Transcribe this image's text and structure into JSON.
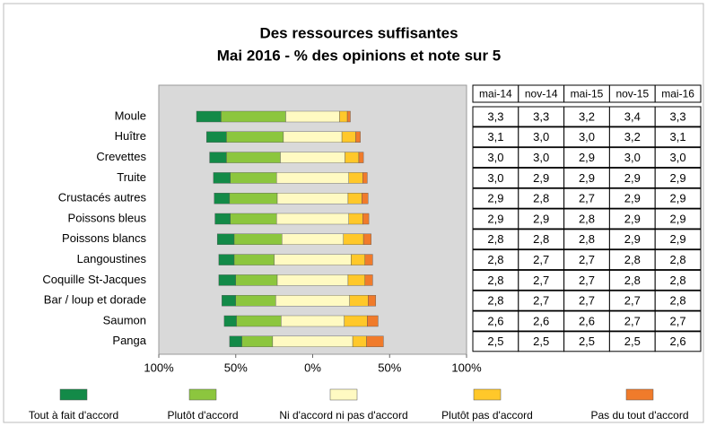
{
  "chart_data": {
    "type": "diverging_bar",
    "title": "Des ressources suffisantes",
    "subtitle": "Mai 2016 - % des opinions et note sur 5",
    "categories": [
      "Moule",
      "Huître",
      "Crevettes",
      "Truite",
      "Crustacés autres",
      "Poissons bleus",
      "Poissons blancs",
      "Langoustines",
      "Coquille St-Jacques",
      "Bar / loup et dorade",
      "Saumon",
      "Panga"
    ],
    "series": [
      {
        "name": "Tout à fait d'accord",
        "color": "#138a48",
        "values": [
          16,
          13,
          11,
          11,
          10,
          10,
          11,
          10,
          11,
          9,
          8,
          8
        ]
      },
      {
        "name": "Plutôt d'accord",
        "color": "#8cc63e",
        "values": [
          42,
          37,
          35,
          30,
          31,
          30,
          31,
          26,
          27,
          26,
          29,
          20
        ]
      },
      {
        "name": "Ni d'accord ni pas d'accord",
        "color": "#fffac2",
        "values": [
          35,
          38,
          42,
          47,
          46,
          47,
          40,
          50,
          46,
          48,
          41,
          52
        ]
      },
      {
        "name": "Plutôt pas d'accord",
        "color": "#ffc82a",
        "values": [
          5,
          9,
          9,
          9,
          9,
          9,
          13,
          9,
          11,
          12,
          15,
          9
        ]
      },
      {
        "name": "Pas du tout d'accord",
        "color": "#f07b2b",
        "values": [
          2,
          3,
          3,
          3,
          4,
          4,
          5,
          5,
          5,
          5,
          7,
          11
        ]
      }
    ],
    "xlim": [
      -100,
      100
    ],
    "xticks": [
      {
        "value": -100,
        "label": "100%"
      },
      {
        "value": -50,
        "label": "50%"
      },
      {
        "value": 0,
        "label": "0%"
      },
      {
        "value": 50,
        "label": "50%"
      },
      {
        "value": 100,
        "label": "100%"
      }
    ]
  },
  "table": {
    "columns": [
      "mai-14",
      "nov-14",
      "mai-15",
      "nov-15",
      "mai-16"
    ],
    "rows": [
      [
        "3,3",
        "3,3",
        {
          "text": "3,2",
          "color": "#e0281e"
        },
        {
          "text": "3,4",
          "color": "#1f9a3a"
        },
        "3,3"
      ],
      [
        "3,1",
        {
          "text": "3,0",
          "color": "#e0281e"
        },
        "3,0",
        {
          "text": "3,2",
          "color": "#1f9a3a"
        },
        {
          "text": "3,1",
          "color": "#e0281e"
        }
      ],
      [
        "3,0",
        "3,0",
        {
          "text": "2,9",
          "color": "#e0281e"
        },
        "3,0",
        "3,0"
      ],
      [
        "3,0",
        {
          "text": "2,9",
          "color": "#e0281e"
        },
        "2,9",
        "2,9",
        "2,9"
      ],
      [
        "2,9",
        {
          "text": "2,8",
          "color": "#e0281e"
        },
        "2,7",
        {
          "text": "2,9",
          "color": "#1f9a3a"
        },
        "2,9"
      ],
      [
        "2,9",
        "2,9",
        "2,8",
        "2,9",
        "2,9"
      ],
      [
        "2,8",
        "2,8",
        "2,8",
        "2,9",
        "2,9"
      ],
      [
        "2,8",
        {
          "text": "2,7",
          "color": "#e0281e"
        },
        "2,7",
        {
          "text": "2,8",
          "color": "#1f9a3a"
        },
        "2,8"
      ],
      [
        "2,8",
        "2,7",
        "2,7",
        {
          "text": "2,8",
          "color": "#1f9a3a"
        },
        "2,8"
      ],
      [
        "2,8",
        {
          "text": "2,7",
          "color": "#e0281e"
        },
        "2,7",
        "2,7",
        "2,8"
      ],
      [
        "2,6",
        "2,6",
        "2,6",
        "2,7",
        "2,7"
      ],
      [
        "2,5",
        "2,5",
        "2,5",
        "2,5",
        "2,6"
      ]
    ]
  }
}
